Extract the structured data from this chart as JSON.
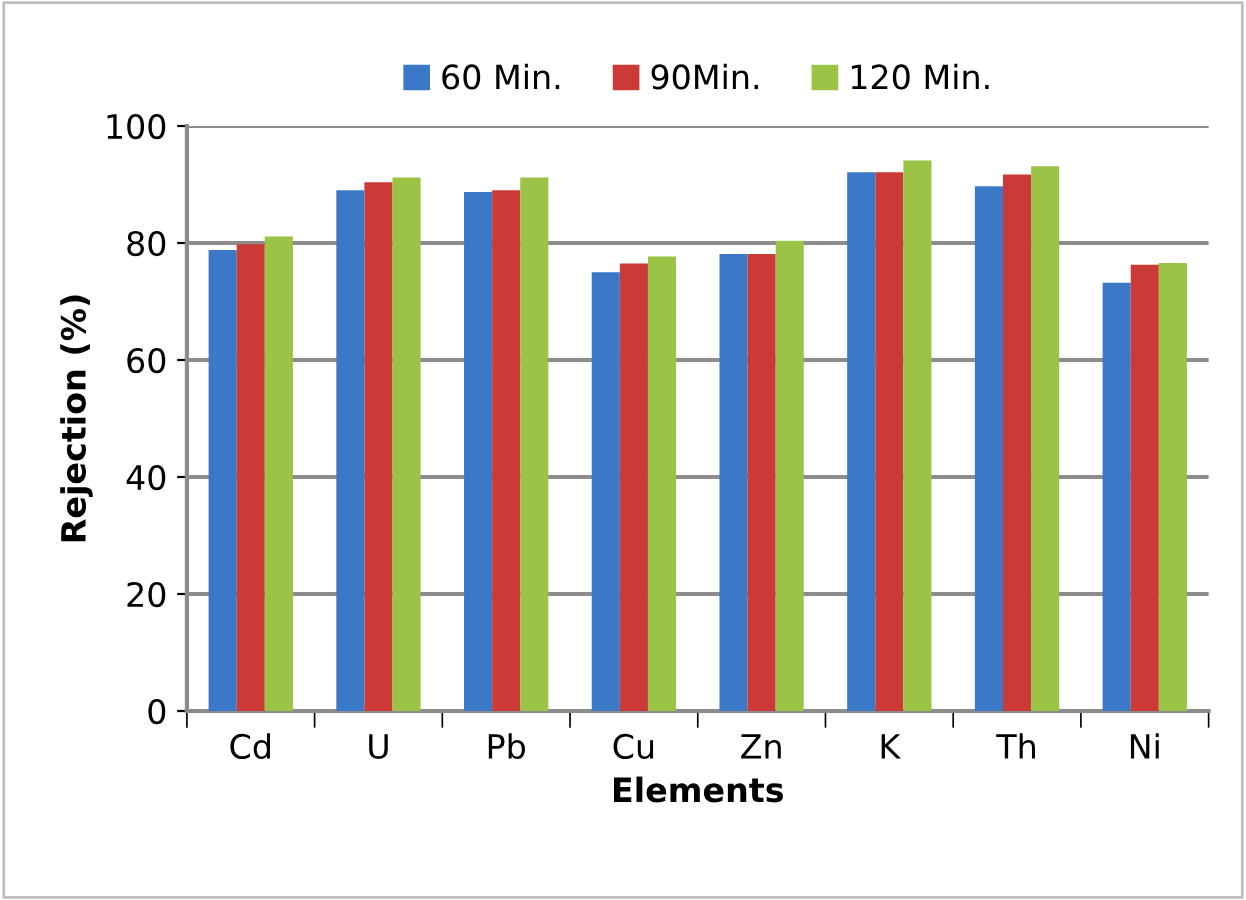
{
  "chart_data": {
    "type": "bar",
    "xlabel": "Elements",
    "ylabel": "Rejection (%)",
    "categories": [
      "Cd",
      "U",
      "Pb",
      "Cu",
      "Zn",
      "K",
      "Th",
      "Ni"
    ],
    "series": [
      {
        "name": "60 Min.",
        "color": "#3b78c8",
        "values": [
          78.8,
          89.0,
          88.7,
          75.0,
          78.1,
          92.1,
          89.7,
          73.2
        ]
      },
      {
        "name": "90Min.",
        "color": "#cc3a38",
        "values": [
          79.8,
          90.4,
          89.0,
          76.5,
          78.1,
          92.1,
          91.7,
          76.3
        ]
      },
      {
        "name": "120 Min.",
        "color": "#9bc446",
        "values": [
          81.1,
          91.2,
          91.2,
          77.7,
          80.4,
          94.1,
          93.1,
          76.6
        ]
      }
    ],
    "ylim": [
      0,
      100
    ],
    "yticks": [
      0,
      20,
      40,
      60,
      80,
      100
    ],
    "grid": "y",
    "legend": "top"
  }
}
